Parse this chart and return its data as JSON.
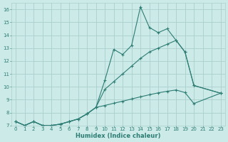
{
  "xlabel": "Humidex (Indice chaleur)",
  "x": [
    0,
    1,
    2,
    3,
    4,
    5,
    6,
    7,
    8,
    9,
    10,
    11,
    12,
    13,
    14,
    15,
    16,
    17,
    18,
    19,
    20,
    21,
    22,
    23
  ],
  "line1": [
    7.3,
    7.0,
    7.3,
    7.0,
    7.0,
    7.1,
    7.3,
    7.5,
    7.9,
    8.4,
    10.5,
    12.9,
    12.5,
    13.2,
    16.2,
    14.6,
    14.2,
    14.5,
    13.6,
    12.7,
    10.1,
    null,
    null,
    9.5
  ],
  "line2": [
    7.3,
    7.0,
    7.3,
    7.0,
    7.0,
    7.1,
    7.3,
    7.5,
    7.9,
    8.4,
    9.8,
    10.4,
    11.0,
    11.6,
    12.2,
    12.7,
    13.0,
    13.3,
    13.6,
    12.7,
    10.1,
    null,
    null,
    9.5
  ],
  "line3": [
    7.3,
    7.0,
    7.3,
    7.0,
    7.0,
    7.1,
    7.3,
    7.5,
    7.9,
    8.4,
    8.55,
    8.72,
    8.88,
    9.05,
    9.22,
    9.38,
    9.53,
    9.65,
    9.75,
    9.55,
    8.7,
    null,
    null,
    9.5
  ],
  "line_color": "#2d7d74",
  "bg_color": "#cceae7",
  "grid_color": "#aacfcc",
  "ylim": [
    7,
    16.5
  ],
  "xlim": [
    -0.5,
    23.5
  ],
  "yticks": [
    7,
    8,
    9,
    10,
    11,
    12,
    13,
    14,
    15,
    16
  ],
  "xticks": [
    0,
    1,
    2,
    3,
    4,
    5,
    6,
    7,
    8,
    9,
    10,
    11,
    12,
    13,
    14,
    15,
    16,
    17,
    18,
    19,
    20,
    21,
    22,
    23
  ],
  "xlabel_fontsize": 6.0,
  "tick_fontsize": 5.0
}
